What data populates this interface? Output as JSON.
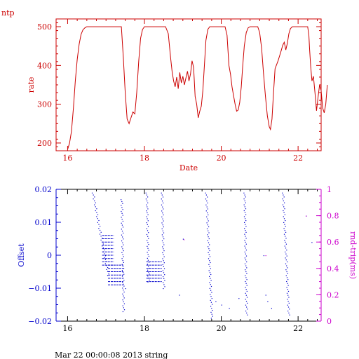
{
  "page_label": "ntp",
  "footer": "Mar 22 00:00:08 2013 string",
  "chart_data": [
    {
      "type": "line",
      "title": "",
      "xlabel": "Date",
      "ylabel": "rate",
      "xlim": [
        15.7,
        22.6
      ],
      "ylim": [
        180,
        520
      ],
      "xticks": [
        16,
        18,
        20,
        22
      ],
      "yticks": [
        200,
        300,
        400,
        500
      ],
      "xtick_labels": [
        "16",
        "18",
        "20",
        "22"
      ],
      "ytick_labels": [
        "200",
        "300",
        "400",
        "500"
      ],
      "color": "#cc0000",
      "series": [
        {
          "points": [
            [
              16.0,
              183
            ],
            [
              16.05,
              200
            ],
            [
              16.1,
              230
            ],
            [
              16.15,
              290
            ],
            [
              16.2,
              360
            ],
            [
              16.25,
              415
            ],
            [
              16.3,
              455
            ],
            [
              16.35,
              480
            ],
            [
              16.4,
              492
            ],
            [
              16.45,
              497
            ],
            [
              16.5,
              500
            ],
            [
              17.4,
              500
            ],
            [
              17.45,
              420
            ],
            [
              17.5,
              330
            ],
            [
              17.55,
              262
            ],
            [
              17.6,
              250
            ],
            [
              17.65,
              265
            ],
            [
              17.7,
              280
            ],
            [
              17.75,
              275
            ],
            [
              17.8,
              330
            ],
            [
              17.85,
              410
            ],
            [
              17.9,
              470
            ],
            [
              17.95,
              493
            ],
            [
              18.0,
              500
            ],
            [
              18.55,
              500
            ],
            [
              18.62,
              482
            ],
            [
              18.68,
              420
            ],
            [
              18.72,
              385
            ],
            [
              18.76,
              360
            ],
            [
              18.8,
              345
            ],
            [
              18.84,
              370
            ],
            [
              18.88,
              340
            ],
            [
              18.92,
              382
            ],
            [
              18.96,
              355
            ],
            [
              19.0,
              372
            ],
            [
              19.04,
              350
            ],
            [
              19.08,
              368
            ],
            [
              19.12,
              385
            ],
            [
              19.16,
              360
            ],
            [
              19.2,
              378
            ],
            [
              19.24,
              412
            ],
            [
              19.28,
              395
            ],
            [
              19.32,
              320
            ],
            [
              19.36,
              300
            ],
            [
              19.4,
              265
            ],
            [
              19.44,
              282
            ],
            [
              19.48,
              295
            ],
            [
              19.52,
              335
            ],
            [
              19.56,
              400
            ],
            [
              19.6,
              465
            ],
            [
              19.65,
              493
            ],
            [
              19.7,
              500
            ],
            [
              20.1,
              500
            ],
            [
              20.15,
              478
            ],
            [
              20.2,
              400
            ],
            [
              20.24,
              378
            ],
            [
              20.28,
              345
            ],
            [
              20.32,
              322
            ],
            [
              20.36,
              300
            ],
            [
              20.4,
              282
            ],
            [
              20.44,
              285
            ],
            [
              20.48,
              305
            ],
            [
              20.52,
              345
            ],
            [
              20.56,
              400
            ],
            [
              20.6,
              450
            ],
            [
              20.65,
              485
            ],
            [
              20.7,
              497
            ],
            [
              20.75,
              500
            ],
            [
              20.95,
              500
            ],
            [
              21.0,
              485
            ],
            [
              21.05,
              445
            ],
            [
              21.1,
              380
            ],
            [
              21.15,
              320
            ],
            [
              21.2,
              270
            ],
            [
              21.25,
              242
            ],
            [
              21.28,
              235
            ],
            [
              21.32,
              262
            ],
            [
              21.36,
              330
            ],
            [
              21.4,
              392
            ],
            [
              21.44,
              402
            ],
            [
              21.48,
              412
            ],
            [
              21.52,
              425
            ],
            [
              21.56,
              438
            ],
            [
              21.6,
              452
            ],
            [
              21.64,
              460
            ],
            [
              21.68,
              440
            ],
            [
              21.72,
              457
            ],
            [
              21.76,
              482
            ],
            [
              21.8,
              495
            ],
            [
              21.85,
              500
            ],
            [
              22.25,
              500
            ],
            [
              22.28,
              478
            ],
            [
              22.3,
              440
            ],
            [
              22.33,
              395
            ],
            [
              22.36,
              360
            ],
            [
              22.4,
              372
            ],
            [
              22.44,
              330
            ],
            [
              22.48,
              283
            ],
            [
              22.52,
              318
            ],
            [
              22.56,
              350
            ],
            [
              22.6,
              335
            ],
            [
              22.64,
              290
            ],
            [
              22.68,
              278
            ],
            [
              22.72,
              300
            ],
            [
              22.76,
              350
            ]
          ]
        }
      ]
    },
    {
      "type": "scatter",
      "title": "",
      "xlabel": "",
      "ylabel": "Offset",
      "y2label": "rnd-trip(ms)",
      "xlim": [
        15.7,
        22.6
      ],
      "ylim": [
        -0.02,
        0.02
      ],
      "y2lim": [
        0,
        1
      ],
      "xticks": [
        16,
        18,
        20,
        22
      ],
      "xtick_labels": [
        "16",
        "18",
        "20",
        "22"
      ],
      "yticks": [
        -0.02,
        -0.01,
        0,
        0.01,
        0.02
      ],
      "ytick_labels": [
        "−0.02",
        "−0.01",
        "0",
        "0.01",
        "0.02"
      ],
      "y2ticks": [
        0,
        0.2,
        0.4,
        0.6,
        0.8,
        1
      ],
      "y2tick_labels": [
        "0",
        "0.2",
        "0.4",
        "0.6",
        "0.8",
        "1"
      ],
      "offset_color": "#0000cc",
      "rtt_color": "#cc00cc",
      "clusters": [
        {
          "x0": 16.9,
          "x1": 17.2,
          "y0": -0.003,
          "y1": 0.006
        },
        {
          "x0": 17.05,
          "x1": 17.45,
          "y0": -0.009,
          "y1": -0.003
        },
        {
          "x0": 18.05,
          "x1": 18.45,
          "y0": -0.008,
          "y1": -0.002
        }
      ],
      "streaks": [
        {
          "x0": 16.65,
          "x1": 17.05,
          "y0": 0.019,
          "y1": -0.006
        },
        {
          "x0": 17.4,
          "x1": 17.45,
          "y0": 0.017,
          "y1": -0.017
        },
        {
          "x0": 18.05,
          "x1": 18.1,
          "y0": 0.019,
          "y1": -0.008
        },
        {
          "x0": 18.45,
          "x1": 18.5,
          "y0": 0.019,
          "y1": -0.01
        },
        {
          "x0": 19.6,
          "x1": 19.75,
          "y0": 0.019,
          "y1": -0.019
        },
        {
          "x0": 20.6,
          "x1": 20.65,
          "y0": 0.019,
          "y1": -0.018
        },
        {
          "x0": 21.6,
          "x1": 21.75,
          "y0": 0.019,
          "y1": -0.018
        }
      ],
      "points": [
        [
          19.0,
          0.005
        ],
        [
          19.85,
          -0.014
        ],
        [
          20.0,
          -0.015
        ],
        [
          20.2,
          -0.016
        ],
        [
          20.45,
          -0.013
        ],
        [
          21.1,
          0.0
        ],
        [
          21.15,
          -0.012
        ],
        [
          21.2,
          -0.014
        ],
        [
          21.3,
          -0.016
        ],
        [
          22.2,
          0.012
        ],
        [
          22.35,
          0.004
        ],
        [
          18.9,
          -0.012
        ],
        [
          17.5,
          -0.01
        ]
      ],
      "rtt_points": [
        [
          22.2,
          0.8
        ],
        [
          19.02,
          0.62
        ],
        [
          21.15,
          0.5
        ]
      ]
    }
  ]
}
